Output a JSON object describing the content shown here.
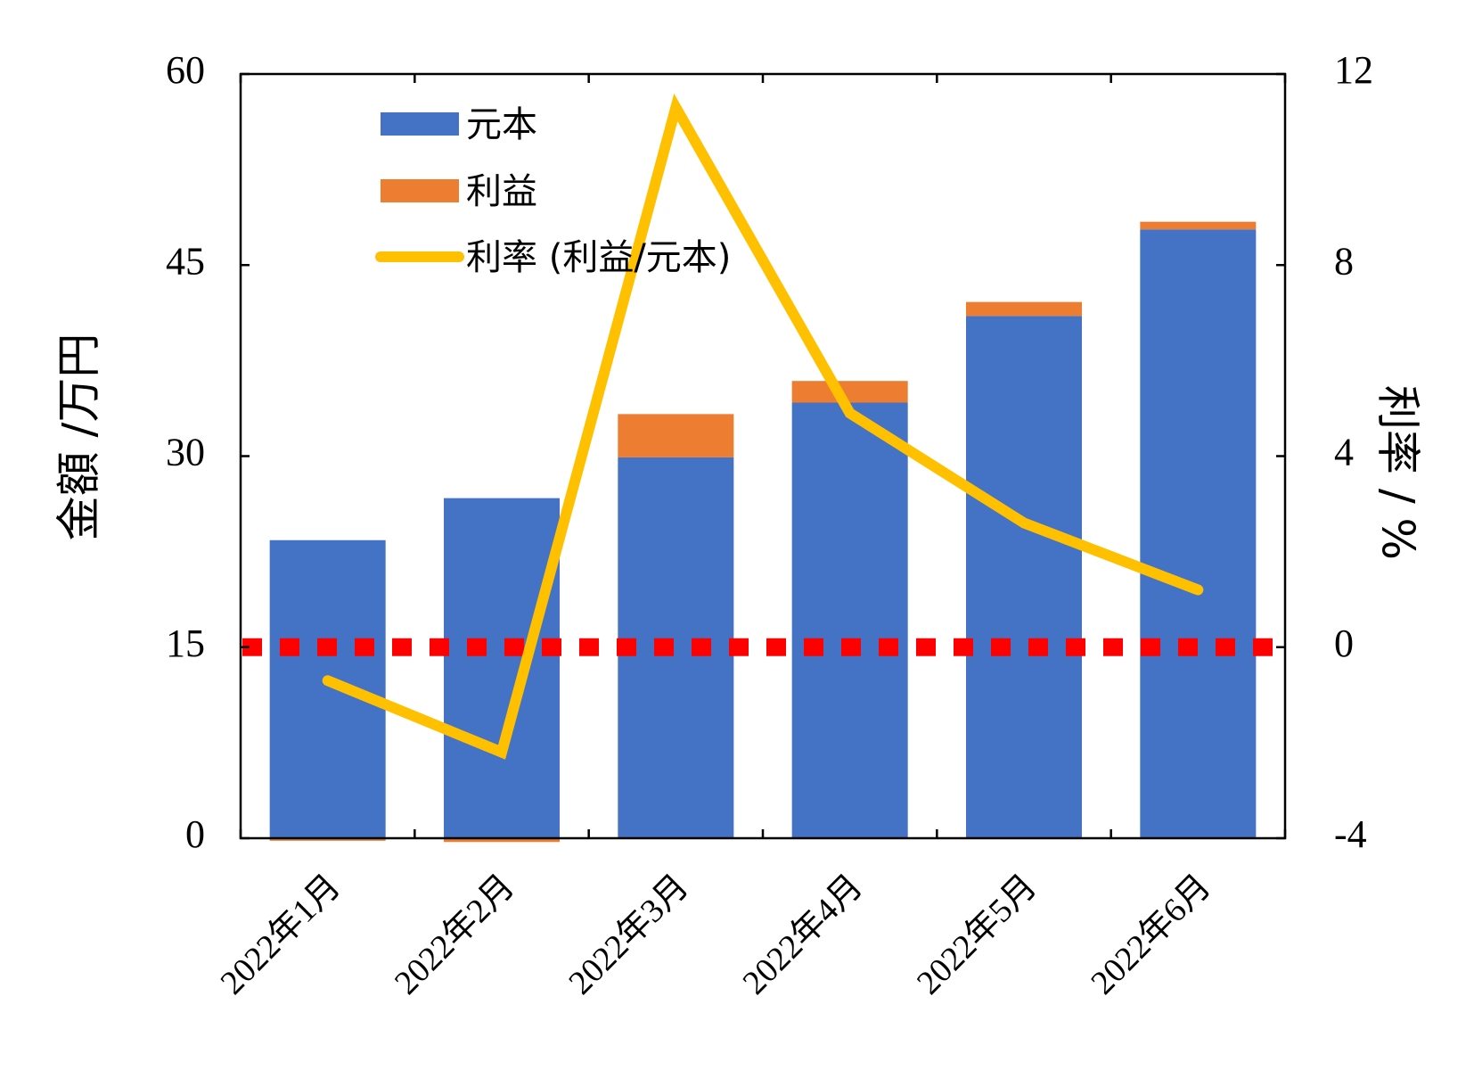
{
  "chart_data": {
    "type": "bar",
    "stacked": true,
    "categories": [
      "2022年1月",
      "2022年2月",
      "2022年3月",
      "2022年4月",
      "2022年5月",
      "2022年6月"
    ],
    "series": [
      {
        "name": "元本",
        "type": "bar",
        "axis": "left",
        "color": "#4472C4",
        "values": [
          23.4,
          26.7,
          29.9,
          34.2,
          41.0,
          47.8
        ]
      },
      {
        "name": "利益",
        "type": "bar",
        "axis": "left",
        "color": "#ED7D31",
        "values": [
          -0.2,
          -0.3,
          3.4,
          1.7,
          1.1,
          0.6
        ]
      },
      {
        "name": "利率 (利益/元本)",
        "type": "line",
        "axis": "right",
        "color": "#FFC000",
        "values": [
          -0.7,
          -2.2,
          11.3,
          4.9,
          2.6,
          1.2
        ]
      }
    ],
    "reference_line": {
      "axis": "right",
      "value": 0,
      "color": "#FF0000",
      "style": "dotted"
    },
    "y_left": {
      "label": "金額 /万円",
      "range": [
        0,
        60
      ],
      "ticks": [
        "0",
        "15",
        "30",
        "45",
        "60"
      ]
    },
    "y_right": {
      "label": "利率 / %",
      "range": [
        -4,
        12
      ],
      "ticks": [
        "-4",
        "0",
        "4",
        "8",
        "12"
      ]
    },
    "xlabel": "",
    "grid": false,
    "legend_position": "top-left"
  }
}
